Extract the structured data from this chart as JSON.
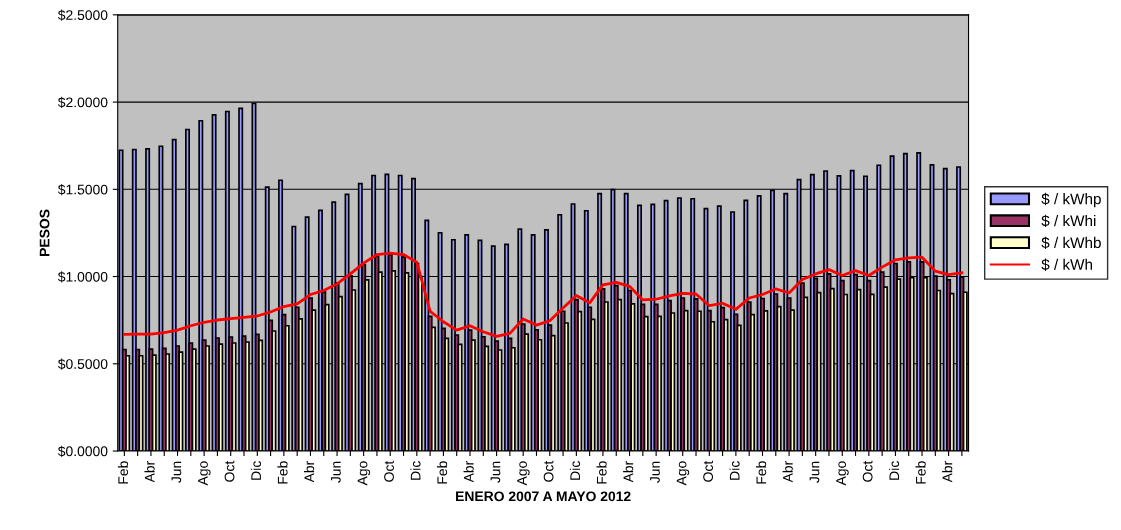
{
  "chart_data": {
    "type": "bar",
    "xlabel": "ENERO 2007 A MAYO 2012",
    "ylabel": "PESOS",
    "categories": [
      "Feb",
      null,
      "Abr",
      null,
      "Jun",
      null,
      "Ago",
      null,
      "Oct",
      null,
      "Dic",
      null,
      "Feb",
      null,
      "Abr",
      null,
      "Jun",
      null,
      "Ago",
      null,
      "Oct",
      null,
      "Dic",
      null,
      "Feb",
      null,
      "Abr",
      null,
      "Jun",
      null,
      "Ago",
      null,
      "Oct",
      null,
      "Dic",
      null,
      "Feb",
      null,
      "Abr",
      null,
      "Jun",
      null,
      "Ago",
      null,
      "Oct",
      null,
      "Dic",
      null,
      "Feb",
      null,
      "Abr",
      null,
      "Jun",
      null,
      "Ago",
      null,
      "Oct",
      null,
      "Dic",
      null,
      "Feb",
      null,
      "Abr",
      null
    ],
    "series": [
      {
        "name": "$ / kWhp",
        "type": "bar",
        "color": "#9999ff",
        "values": [
          1.724,
          1.728,
          1.732,
          1.747,
          1.785,
          1.843,
          1.893,
          1.927,
          1.946,
          1.964,
          1.992,
          1.513,
          1.552,
          1.287,
          1.341,
          1.379,
          1.427,
          1.471,
          1.533,
          1.579,
          1.586,
          1.579,
          1.561,
          1.322,
          1.251,
          1.211,
          1.239,
          1.207,
          1.174,
          1.184,
          1.272,
          1.239,
          1.268,
          1.354,
          1.416,
          1.377,
          1.475,
          1.498,
          1.475,
          1.408,
          1.414,
          1.435,
          1.45,
          1.446,
          1.389,
          1.404,
          1.37,
          1.437,
          1.462,
          1.494,
          1.475,
          1.556,
          1.584,
          1.605,
          1.577,
          1.607,
          1.575,
          1.638,
          1.69,
          1.705,
          1.709,
          1.64,
          1.619,
          1.628
        ]
      },
      {
        "name": "$ / kWhi",
        "type": "bar",
        "color": "#993366",
        "values": [
          0.582,
          0.582,
          0.584,
          0.588,
          0.602,
          0.619,
          0.636,
          0.648,
          0.653,
          0.659,
          0.669,
          0.749,
          0.782,
          0.824,
          0.877,
          0.912,
          0.962,
          1.004,
          1.069,
          1.115,
          1.126,
          1.111,
          1.075,
          0.772,
          0.703,
          0.665,
          0.693,
          0.655,
          0.63,
          0.646,
          0.728,
          0.695,
          0.722,
          0.801,
          0.868,
          0.824,
          0.929,
          0.948,
          0.92,
          0.841,
          0.841,
          0.862,
          0.877,
          0.872,
          0.805,
          0.822,
          0.784,
          0.854,
          0.874,
          0.9,
          0.877,
          0.962,
          0.99,
          1.015,
          0.977,
          1.011,
          0.977,
          1.025,
          1.075,
          1.084,
          1.084,
          1.002,
          0.981,
          0.996
        ]
      },
      {
        "name": "$ / kWhb",
        "type": "bar",
        "color": "#ffffcc",
        "values": [
          0.546,
          0.546,
          0.55,
          0.556,
          0.567,
          0.584,
          0.602,
          0.613,
          0.619,
          0.625,
          0.634,
          0.688,
          0.718,
          0.757,
          0.808,
          0.839,
          0.885,
          0.923,
          0.981,
          1.025,
          1.033,
          1.021,
          1.0,
          0.709,
          0.646,
          0.611,
          0.636,
          0.6,
          0.579,
          0.592,
          0.67,
          0.638,
          0.661,
          0.734,
          0.799,
          0.755,
          0.854,
          0.868,
          0.843,
          0.77,
          0.772,
          0.791,
          0.805,
          0.801,
          0.741,
          0.753,
          0.72,
          0.782,
          0.803,
          0.828,
          0.808,
          0.881,
          0.908,
          0.931,
          0.897,
          0.925,
          0.898,
          0.939,
          0.985,
          0.994,
          0.994,
          0.92,
          0.902,
          0.91
        ]
      },
      {
        "name": "$ / kWh",
        "type": "line",
        "color": "#ff0000",
        "values": [
          0.669,
          0.67,
          0.67,
          0.678,
          0.693,
          0.718,
          0.738,
          0.751,
          0.759,
          0.766,
          0.774,
          0.797,
          0.828,
          0.843,
          0.897,
          0.92,
          0.958,
          1.015,
          1.077,
          1.126,
          1.134,
          1.126,
          1.082,
          0.801,
          0.741,
          0.693,
          0.718,
          0.684,
          0.657,
          0.674,
          0.757,
          0.722,
          0.747,
          0.82,
          0.891,
          0.849,
          0.952,
          0.967,
          0.944,
          0.866,
          0.87,
          0.889,
          0.904,
          0.9,
          0.833,
          0.847,
          0.812,
          0.877,
          0.897,
          0.929,
          0.906,
          0.983,
          1.015,
          1.04,
          1.006,
          1.034,
          1.006,
          1.054,
          1.096,
          1.107,
          1.111,
          1.031,
          1.011,
          1.021
        ]
      }
    ],
    "ylim": [
      0,
      2.5
    ],
    "yticks": [
      {
        "value": 0,
        "label": "$0.0000"
      },
      {
        "value": 0.5,
        "label": "$0.5000"
      },
      {
        "value": 1,
        "label": "$1.0000"
      },
      {
        "value": 1.5,
        "label": "$1.5000"
      },
      {
        "value": 2,
        "label": "$2.0000"
      },
      {
        "value": 2.5,
        "label": "$2.5000"
      }
    ],
    "grid": "y",
    "legend": "right"
  }
}
